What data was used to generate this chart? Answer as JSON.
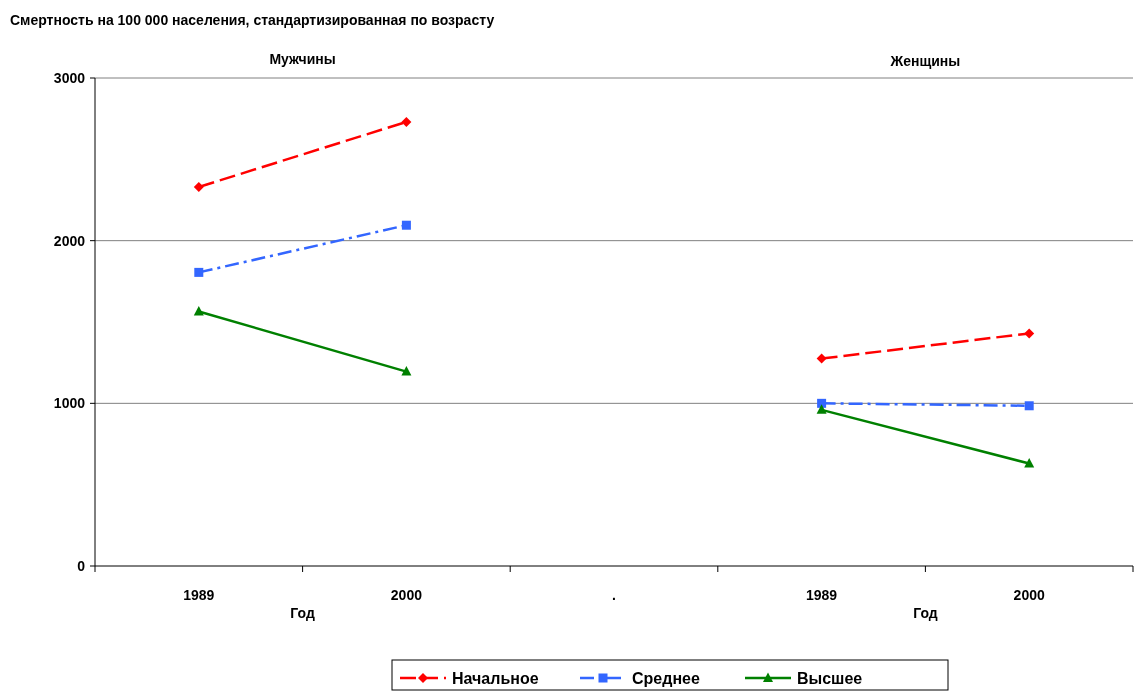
{
  "chart_data": {
    "type": "line",
    "title": "Смертность на 100 000 населения, стандартизированная по возрасту",
    "categories": [
      "1989",
      "2000",
      ".",
      "1989",
      "2000"
    ],
    "series": [
      {
        "name": "Начальное",
        "color": "#ff0000",
        "values": [
          2330,
          2730,
          null,
          1275,
          1430
        ],
        "marker": "diamond",
        "line_style": "dashed"
      },
      {
        "name": "Среднее",
        "color": "#3366ff",
        "values": [
          1805,
          2095,
          null,
          1000,
          985
        ],
        "marker": "square",
        "line_style": "dotted"
      },
      {
        "name": "Высшее",
        "color": "#008000",
        "values": [
          1565,
          1195,
          null,
          960,
          630
        ],
        "marker": "triangle",
        "line_style": "solid"
      }
    ],
    "ylim": [
      0,
      3000
    ],
    "yticks": [
      0,
      1000,
      2000,
      3000
    ],
    "grid": "y",
    "legend": "bottom",
    "annotations": [
      "Мужчины",
      "Женщины",
      "Год",
      "Год"
    ]
  }
}
